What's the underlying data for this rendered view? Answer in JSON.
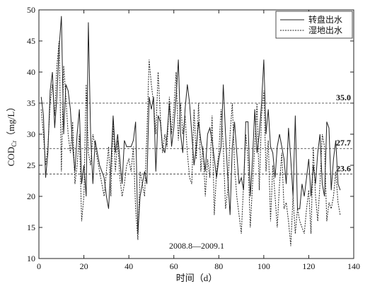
{
  "chart_data": {
    "type": "line",
    "xlabel": "时间（d）",
    "ylabel_parts": [
      "COD",
      "Cr",
      "（mg/L）"
    ],
    "annotation": "2008.8—2009.1",
    "x": [
      1,
      2,
      3,
      4,
      5,
      6,
      7,
      8,
      9,
      10,
      11,
      12,
      13,
      14,
      15,
      16,
      17,
      18,
      19,
      20,
      21,
      22,
      23,
      24,
      25,
      26,
      27,
      28,
      29,
      30,
      31,
      32,
      33,
      34,
      35,
      36,
      37,
      38,
      39,
      40,
      41,
      42,
      43,
      44,
      45,
      46,
      47,
      48,
      49,
      50,
      51,
      52,
      53,
      54,
      55,
      56,
      57,
      58,
      59,
      60,
      61,
      62,
      63,
      64,
      65,
      66,
      67,
      68,
      69,
      70,
      71,
      72,
      73,
      74,
      75,
      76,
      77,
      78,
      79,
      80,
      81,
      82,
      83,
      84,
      85,
      86,
      87,
      88,
      89,
      90,
      91,
      92,
      93,
      94,
      95,
      96,
      97,
      98,
      99,
      100,
      101,
      102,
      103,
      104,
      105,
      106,
      107,
      108,
      109,
      110,
      111,
      112,
      113,
      114,
      115,
      116,
      117,
      118,
      119,
      120,
      121,
      122,
      123,
      124,
      125,
      126,
      127,
      128,
      129,
      130,
      131,
      132,
      133,
      134
    ],
    "series": [
      {
        "name": "转盘出水",
        "color": "#222222",
        "dash": "none",
        "values": [
          36,
          33,
          23,
          27,
          37,
          40,
          31,
          36,
          44,
          49,
          30,
          38,
          37,
          34,
          28,
          24,
          30,
          34,
          22,
          25,
          20,
          48,
          30,
          22,
          29,
          27,
          25,
          24,
          23,
          20,
          18,
          25,
          33,
          27,
          30,
          26,
          22,
          29,
          28,
          28,
          28,
          29,
          32,
          14,
          20,
          22,
          24,
          22,
          36,
          34,
          36,
          24,
          33,
          32,
          28,
          27,
          30,
          35,
          28,
          31,
          36,
          42,
          30,
          27,
          34,
          38,
          35,
          30,
          25,
          28,
          32,
          29,
          27,
          24,
          30,
          31,
          29,
          26,
          23,
          26,
          28,
          38,
          30,
          23,
          17,
          28,
          32,
          27,
          22,
          23,
          21,
          32,
          32,
          20,
          26,
          34,
          27,
          30,
          35,
          42,
          30,
          34,
          28,
          27,
          23,
          28,
          30,
          28,
          26,
          22,
          31,
          26,
          20,
          33,
          18,
          18,
          22,
          20,
          23,
          26,
          20,
          25,
          22,
          27,
          30,
          22,
          20,
          32,
          31,
          21,
          26,
          29,
          22,
          21
        ]
      },
      {
        "name": "湿地出水",
        "color": "#222222",
        "dash": "2,1.5",
        "values": [
          34,
          30,
          25,
          28,
          35,
          38,
          33,
          41,
          45,
          24,
          41,
          36,
          30,
          27,
          32,
          22,
          25,
          30,
          16,
          20,
          38,
          27,
          25,
          30,
          28,
          26,
          24,
          22,
          20,
          24,
          28,
          20,
          32,
          24,
          29,
          23,
          20,
          22,
          25,
          26,
          24,
          28,
          18,
          13,
          24,
          22,
          20,
          30,
          42,
          38,
          35,
          30,
          40,
          33,
          27,
          30,
          28,
          36,
          30,
          34,
          40,
          29,
          35,
          30,
          33,
          27,
          23,
          22,
          34,
          26,
          35,
          24,
          28,
          20,
          26,
          23,
          33,
          17,
          24,
          27,
          34,
          28,
          18,
          21,
          30,
          35,
          25,
          20,
          17,
          14,
          22,
          30,
          26,
          15,
          22,
          28,
          35,
          21,
          33,
          37,
          24,
          29,
          16,
          25,
          20,
          15,
          22,
          27,
          18,
          19,
          16,
          12,
          20,
          14,
          18,
          16,
          15,
          14,
          18,
          21,
          14,
          28,
          20,
          16,
          22,
          30,
          28,
          16,
          19,
          18,
          20,
          24,
          19,
          17
        ]
      }
    ],
    "reference_lines": [
      {
        "value": 35.0,
        "label": "35.0"
      },
      {
        "value": 27.7,
        "label": "27.7"
      },
      {
        "value": 23.6,
        "label": "23.6"
      }
    ],
    "xlim": [
      0,
      140
    ],
    "xticks": [
      0,
      20,
      40,
      60,
      80,
      100,
      120,
      140
    ],
    "ylim": [
      10,
      50
    ],
    "yticks": [
      10,
      15,
      20,
      25,
      30,
      35,
      40,
      45,
      50
    ],
    "legend": "upper right"
  }
}
